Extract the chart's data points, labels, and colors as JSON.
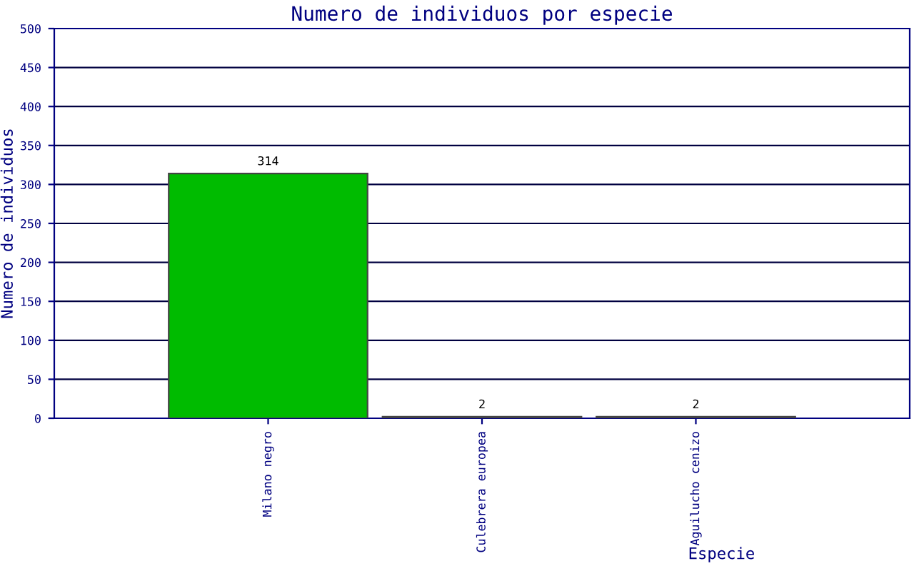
{
  "chart_data": {
    "type": "bar",
    "title": "Numero de individuos por especie",
    "xlabel": "Especie",
    "ylabel": "Numero de individuos",
    "categories": [
      "Milano negro",
      "Culebrera europea",
      "Aguilucho cenizo"
    ],
    "values": [
      314,
      2,
      2
    ],
    "color": "#00bb00",
    "ylim": [
      0,
      500
    ],
    "yticks": [
      0,
      50,
      100,
      150,
      200,
      250,
      300,
      350,
      400,
      450,
      500
    ],
    "grid": "y",
    "data_labels": true
  }
}
